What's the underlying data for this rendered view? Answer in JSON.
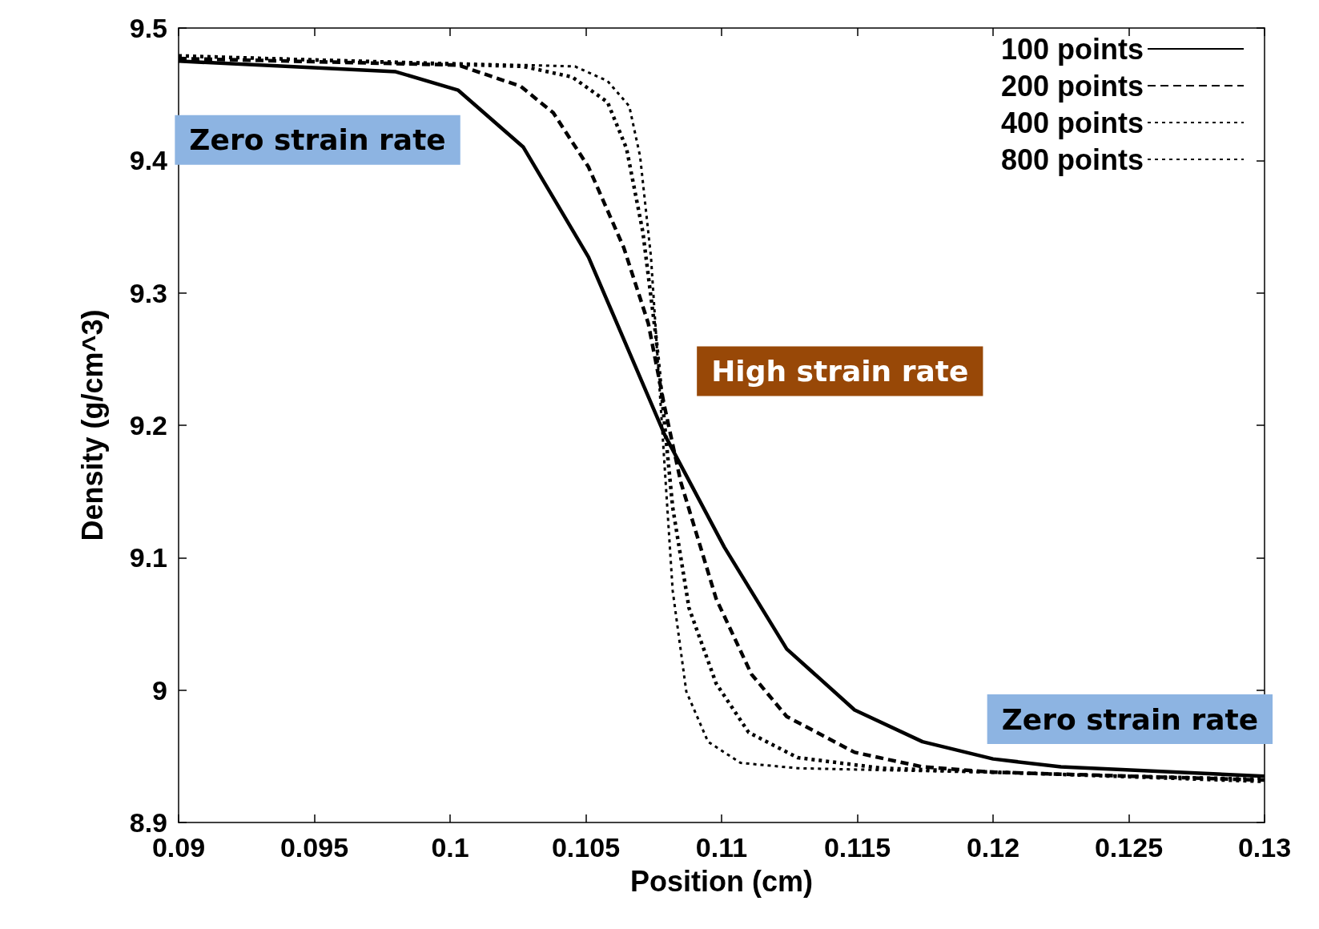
{
  "chart_data": {
    "type": "line",
    "xlabel": "Position (cm)",
    "ylabel": "Density (g/cm^3)",
    "xlim": [
      0.09,
      0.13
    ],
    "xticks": [
      0.09,
      0.095,
      0.1,
      0.105,
      0.11,
      0.115,
      0.12,
      0.125,
      0.13
    ],
    "ylim": [
      8.9,
      9.5
    ],
    "yticks": [
      8.9,
      9,
      9.1,
      9.2,
      9.3,
      9.4,
      9.5
    ],
    "grid": false,
    "legend": "top right",
    "marker": "none",
    "series": [
      {
        "name": "100 points",
        "color": "#000000",
        "line_style": "solid",
        "x": [
          0.09,
          0.098,
          0.1003,
          0.1027,
          0.1051,
          0.1079,
          0.1101,
          0.1124,
          0.1149,
          0.1174,
          0.12,
          0.1225,
          0.13
        ],
        "values": [
          9.475,
          9.467,
          9.453,
          9.41,
          9.327,
          9.193,
          9.108,
          9.031,
          8.985,
          8.961,
          8.948,
          8.942,
          8.935
        ]
      },
      {
        "name": "200 points",
        "color": "#000000",
        "line_style": "dashed",
        "x": [
          0.09,
          0.1003,
          0.1026,
          0.1038,
          0.1051,
          0.1064,
          0.1073,
          0.1079,
          0.1085,
          0.1098,
          0.1111,
          0.1124,
          0.1149,
          0.1174,
          0.12,
          0.13
        ],
        "values": [
          9.477,
          9.472,
          9.456,
          9.436,
          9.395,
          9.334,
          9.277,
          9.214,
          9.157,
          9.069,
          9.012,
          8.98,
          8.953,
          8.942,
          8.938,
          8.932
        ]
      },
      {
        "name": "400 points",
        "color": "#000000",
        "line_style": "dotted",
        "x": [
          0.09,
          0.1027,
          0.1045,
          0.1058,
          0.1065,
          0.1071,
          0.1076,
          0.1079,
          0.1082,
          0.1088,
          0.1098,
          0.111,
          0.1128,
          0.1159,
          0.13
        ],
        "values": [
          9.479,
          9.471,
          9.463,
          9.444,
          9.409,
          9.346,
          9.264,
          9.201,
          9.138,
          9.062,
          9.005,
          8.968,
          8.949,
          8.941,
          8.931
        ]
      },
      {
        "name": "800 points",
        "color": "#000000",
        "line_style": "dotted",
        "x": [
          0.09,
          0.1046,
          0.1058,
          0.1066,
          0.107,
          0.1074,
          0.1077,
          0.1079,
          0.1082,
          0.1087,
          0.1095,
          0.1107,
          0.1128,
          0.13
        ],
        "values": [
          9.479,
          9.471,
          9.46,
          9.441,
          9.403,
          9.327,
          9.233,
          9.17,
          9.075,
          8.999,
          8.961,
          8.945,
          8.941,
          8.933
        ]
      }
    ],
    "annotations": [
      "Zero strain rate",
      "High strain rate",
      "Zero strain rate"
    ]
  }
}
